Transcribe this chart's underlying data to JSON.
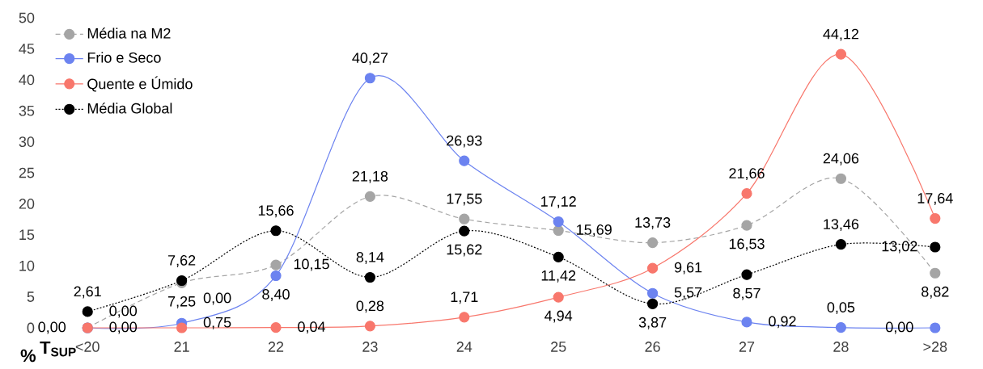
{
  "chart_data": {
    "type": "line",
    "xlabel": "T$_{SUP}$",
    "ylabel": "%",
    "categories": [
      "<20",
      "21",
      "22",
      "23",
      "24",
      "25",
      "26",
      "27",
      "28",
      ">28"
    ],
    "series": [
      {
        "name": "Média na M2",
        "color": "#a5a5a5",
        "line_style": "dashed",
        "values": [
          0.0,
          7.25,
          10.15,
          21.18,
          17.55,
          15.69,
          13.73,
          16.53,
          24.06,
          8.82
        ],
        "value_labels": [
          "0,00",
          "7,25",
          "10,15",
          "21,18",
          "17,55",
          "15,69",
          "13,73",
          "16,53",
          "24,06",
          "8,82"
        ]
      },
      {
        "name": "Frio e Seco",
        "color": "#6c83f0",
        "line_style": "solid",
        "values": [
          0.0,
          0.75,
          8.4,
          40.27,
          26.93,
          17.12,
          5.57,
          0.92,
          0.05,
          0.0
        ],
        "value_labels": [
          "0,00",
          "0,75",
          "8,40",
          "40,27",
          "26,93",
          "17,12",
          "5,57",
          "0,92",
          "0,05",
          "0,00"
        ]
      },
      {
        "name": "Quente e Úmido",
        "color": "#f8776c",
        "line_style": "solid",
        "values": [
          0.0,
          0.0,
          0.04,
          0.28,
          1.71,
          4.94,
          9.61,
          21.66,
          44.12,
          17.64
        ],
        "value_labels": [
          "0,00",
          "0,00",
          "0,04",
          "0,28",
          "1,71",
          "4,94",
          "9,61",
          "21,66",
          "44,12",
          "17,64"
        ]
      },
      {
        "name": "Média Global",
        "color": "#000000",
        "line_style": "dotted",
        "values": [
          2.61,
          7.62,
          15.66,
          8.14,
          15.62,
          11.42,
          3.87,
          8.57,
          13.46,
          13.02
        ],
        "value_labels": [
          "2,61",
          "7,62",
          "15,66",
          "8,14",
          "15,62",
          "11,42",
          "3,87",
          "8,57",
          "13,46",
          "13,02"
        ]
      }
    ],
    "ylim": [
      0,
      50
    ],
    "yticks": [
      0,
      5,
      10,
      15,
      20,
      25,
      30,
      35,
      40,
      45,
      50
    ],
    "grid": false,
    "legend": "top left",
    "marker": "circle"
  }
}
